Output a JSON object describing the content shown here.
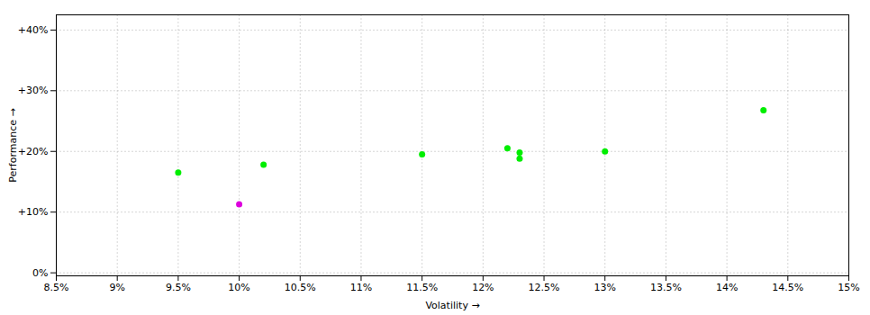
{
  "chart_data": {
    "type": "scatter",
    "xlabel": "Volatility",
    "ylabel": "Performance",
    "xlim": [
      0.085,
      0.15
    ],
    "ylim": [
      -0.005,
      0.425
    ],
    "xticks": [
      {
        "value": 0.085,
        "label": "8.5%"
      },
      {
        "value": 0.09,
        "label": "9%"
      },
      {
        "value": 0.095,
        "label": "9.5%"
      },
      {
        "value": 0.1,
        "label": "10%"
      },
      {
        "value": 0.105,
        "label": "10.5%"
      },
      {
        "value": 0.11,
        "label": "11%"
      },
      {
        "value": 0.115,
        "label": "11.5%"
      },
      {
        "value": 0.12,
        "label": "12%"
      },
      {
        "value": 0.125,
        "label": "12.5%"
      },
      {
        "value": 0.13,
        "label": "13%"
      },
      {
        "value": 0.135,
        "label": "13.5%"
      },
      {
        "value": 0.14,
        "label": "14%"
      },
      {
        "value": 0.145,
        "label": "14.5%"
      },
      {
        "value": 0.15,
        "label": "15%"
      }
    ],
    "yticks": [
      {
        "value": 0.0,
        "label": "0%"
      },
      {
        "value": 0.1,
        "label": "+10%"
      },
      {
        "value": 0.2,
        "label": "+20%"
      },
      {
        "value": 0.3,
        "label": "+30%"
      },
      {
        "value": 0.4,
        "label": "+40%"
      }
    ],
    "grid": true,
    "series": [
      {
        "color": "#00ee00",
        "x": [
          0.095,
          0.102,
          0.115,
          0.122,
          0.123,
          0.123,
          0.13,
          0.143
        ],
        "values": [
          0.165,
          0.178,
          0.195,
          0.205,
          0.198,
          0.188,
          0.2,
          0.268
        ]
      },
      {
        "color": "#dd00dd",
        "x": [
          0.1
        ],
        "values": [
          0.113
        ]
      }
    ]
  }
}
